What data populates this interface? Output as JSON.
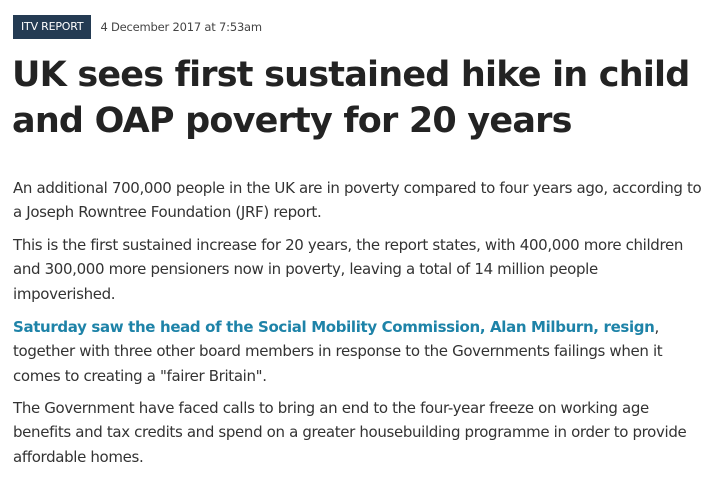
{
  "article": {
    "badge": "ITV REPORT",
    "timestamp": "4 December 2017 at 7:53am",
    "headline": "UK sees first sustained hike in child and OAP poverty for 20 years",
    "paragraph_1": "An additional 700,000 people in the UK are in poverty compared to four years ago, according to a Joseph Rowntree Foundation (JRF) report.",
    "paragraph_2": "This is the first sustained increase for 20 years, the report states, with 400,000 more children and 300,000 more pensioners now in poverty, leaving a total of 14 million people impoverished.",
    "paragraph_3_link": "Saturday saw the head of the Social Mobility Commission, Alan Milburn, resign",
    "paragraph_3_rest": ", together with three other board members in response to the Governments failings when it comes to creating a \"fairer Britain\".",
    "paragraph_4": "The Government have faced calls to bring an end to the four-year freeze on working age benefits and tax credits and spend on a greater housebuilding programme in order to provide affordable homes."
  },
  "colors": {
    "badge_background": "#243b53",
    "link": "#1e83a8",
    "headline": "#232323",
    "body_text": "#333333"
  }
}
